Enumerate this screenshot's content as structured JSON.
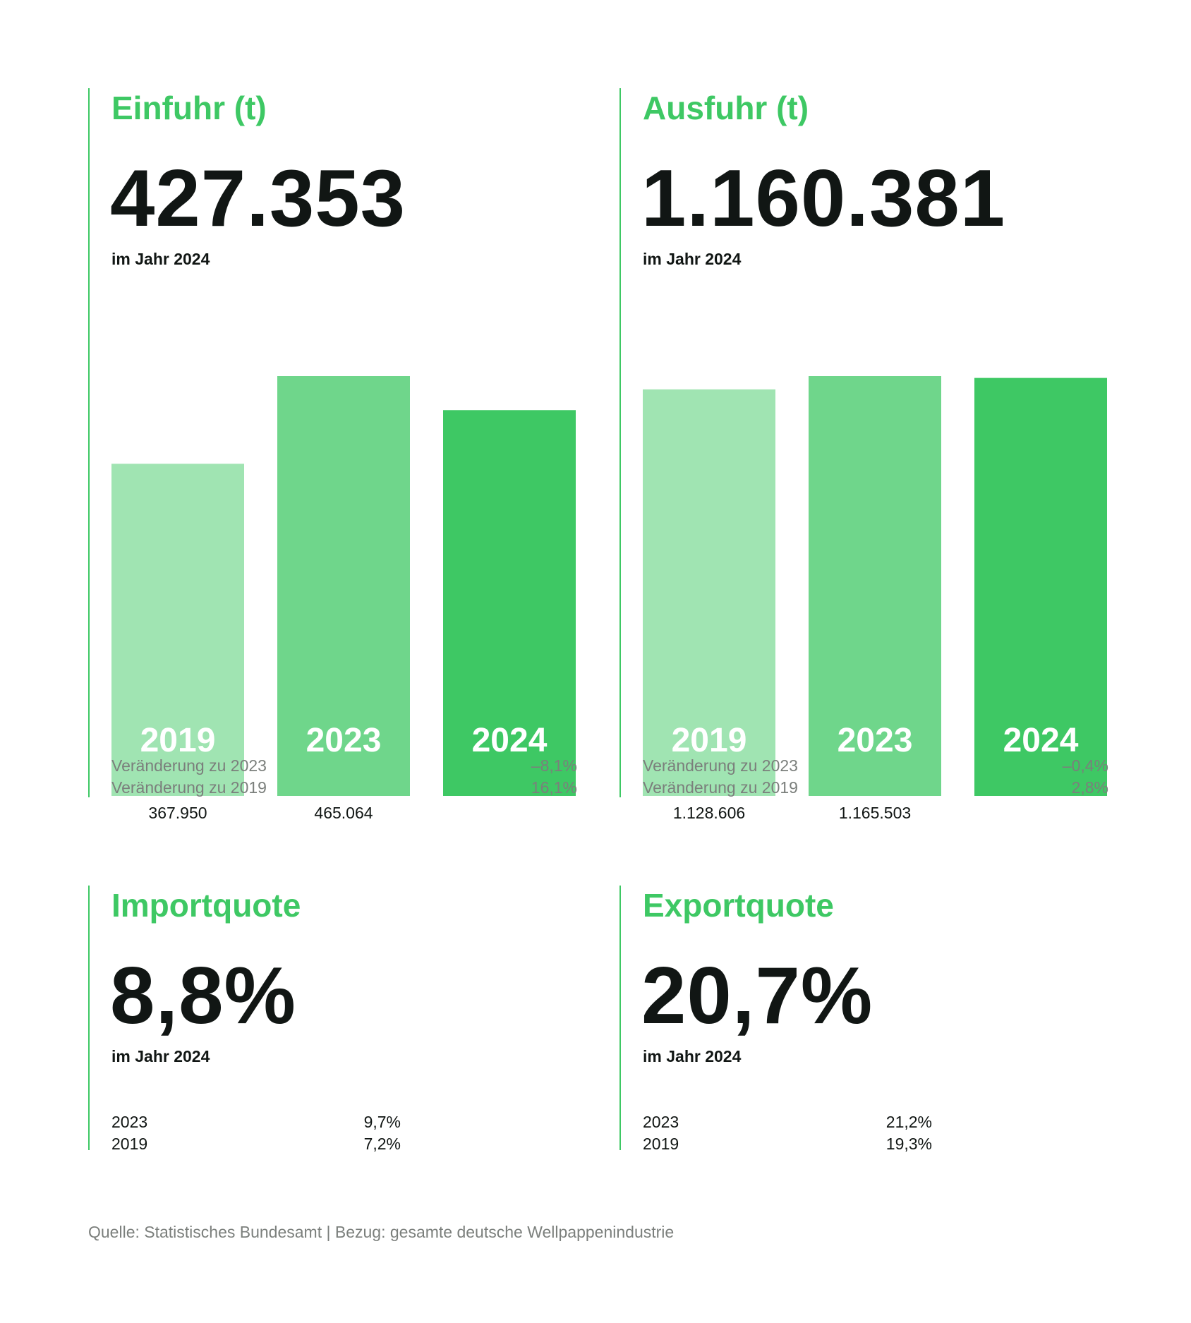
{
  "panels": {
    "einfuhr": {
      "title": "Einfuhr (t)",
      "value": "427.353",
      "subtitle": "im Jahr 2024",
      "changes": [
        {
          "label": "Veränderung zu 2023",
          "value": "–8,1%"
        },
        {
          "label": "Veränderung zu 2019",
          "value": "16,1%"
        }
      ]
    },
    "ausfuhr": {
      "title": "Ausfuhr (t)",
      "value": "1.160.381",
      "subtitle": "im Jahr 2024",
      "changes": [
        {
          "label": "Veränderung zu 2023",
          "value": "–0,4%"
        },
        {
          "label": "Veränderung zu 2019",
          "value": "2,8%"
        }
      ]
    },
    "importquote": {
      "title": "Importquote",
      "value": "8,8%",
      "subtitle": "im Jahr 2024",
      "history": [
        {
          "year": "2023",
          "value": "9,7%"
        },
        {
          "year": "2019",
          "value": "7,2%"
        }
      ]
    },
    "exportquote": {
      "title": "Exportquote",
      "value": "20,7%",
      "subtitle": "im Jahr 2024",
      "history": [
        {
          "year": "2023",
          "value": "21,2%"
        },
        {
          "year": "2019",
          "value": "19,3%"
        }
      ]
    }
  },
  "colors": {
    "accent": "#3ec864",
    "bar_2019": "#a0e4b2",
    "bar_2023": "#6fd68b",
    "bar_2024": "#3ec864",
    "text_dark": "#111614",
    "text_muted": "#7b7f7c"
  },
  "chart_data": [
    {
      "type": "bar",
      "categories": [
        "2019",
        "2023",
        "2024"
      ],
      "values": [
        367950,
        465064,
        427353
      ],
      "value_labels": [
        "367.950",
        "465.064",
        ""
      ],
      "title": "Einfuhr (t)",
      "ylim": [
        0,
        465064
      ]
    },
    {
      "type": "bar",
      "categories": [
        "2019",
        "2023",
        "2024"
      ],
      "values": [
        1128606,
        1165503,
        1160381
      ],
      "value_labels": [
        "1.128.606",
        "1.165.503",
        ""
      ],
      "title": "Ausfuhr (t)",
      "ylim": [
        0,
        1165503
      ]
    }
  ],
  "source": "Quelle: Statistisches Bundesamt | Bezug: gesamte deutsche Wellpappenindustrie"
}
